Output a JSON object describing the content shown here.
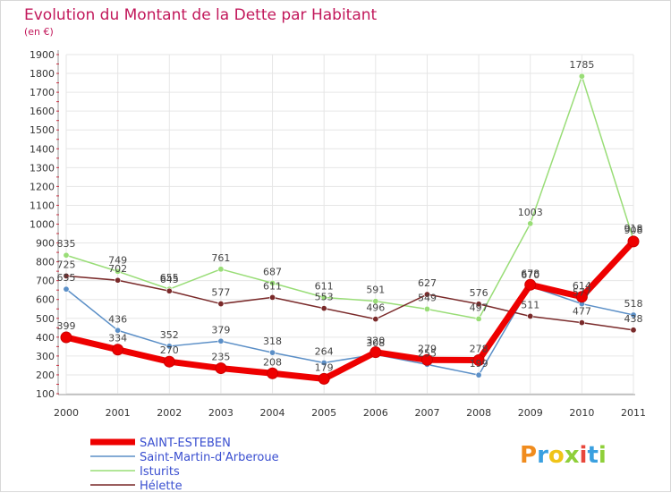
{
  "chart_data": {
    "type": "line",
    "title": "Evolution du Montant de la Dette par Habitant",
    "subtitle": "(en €)",
    "x": [
      "2000",
      "2001",
      "2002",
      "2003",
      "2004",
      "2005",
      "2006",
      "2007",
      "2008",
      "2009",
      "2010",
      "2011"
    ],
    "y_ticks": [
      "100",
      "200",
      "300",
      "400",
      "500",
      "600",
      "700",
      "800",
      "900",
      "1000",
      "1100",
      "1200",
      "1300",
      "1400",
      "1500",
      "1600",
      "1700",
      "1800",
      "1900"
    ],
    "ylim": [
      100,
      1900
    ],
    "grid": true,
    "legend_position": "bottom-left",
    "series": [
      {
        "name": "Saint-Martin-d'Arberoue",
        "color": "#5b8fc7",
        "labels": [
          "655",
          "436",
          "352",
          "379",
          "318",
          "264",
          "308",
          "255",
          "199",
          "670",
          "577",
          "518"
        ],
        "values": [
          655,
          436,
          352,
          379,
          318,
          264,
          308,
          255,
          199,
          670,
          577,
          518
        ]
      },
      {
        "name": "Isturits",
        "color": "#99dd77",
        "labels": [
          "835",
          "749",
          "655",
          "761",
          "687",
          "611",
          "591",
          "549",
          "497",
          "1003",
          "1785",
          "918"
        ],
        "values": [
          835,
          749,
          655,
          761,
          687,
          611,
          591,
          549,
          497,
          1003,
          1785,
          918
        ]
      },
      {
        "name": "Hélette",
        "color": "#7a2a2a",
        "labels": [
          "725",
          "702",
          "645",
          "577",
          "611",
          "553",
          "496",
          "627",
          "576",
          "511",
          "477",
          "438"
        ],
        "values": [
          725,
          702,
          645,
          577,
          611,
          553,
          496,
          627,
          576,
          511,
          477,
          438
        ]
      },
      {
        "name": "SAINT-ESTEBEN",
        "color": "#ee0000",
        "labels": [
          "399",
          "334",
          "270",
          "235",
          "208",
          "179",
          "320",
          "279",
          "278",
          "678",
          "614",
          "908"
        ],
        "values": [
          399,
          334,
          270,
          235,
          208,
          179,
          320,
          279,
          278,
          678,
          614,
          908
        ]
      }
    ],
    "legend_order": [
      3,
      0,
      1,
      2
    ]
  },
  "logo": {
    "letters": [
      "P",
      "r",
      "o",
      "x",
      "i",
      "t",
      "i"
    ],
    "colors": [
      "#f08c1e",
      "#3aa0e0",
      "#f0c419",
      "#8fcf3a",
      "#e8473c",
      "#3aa0e0",
      "#8fcf3a"
    ]
  }
}
